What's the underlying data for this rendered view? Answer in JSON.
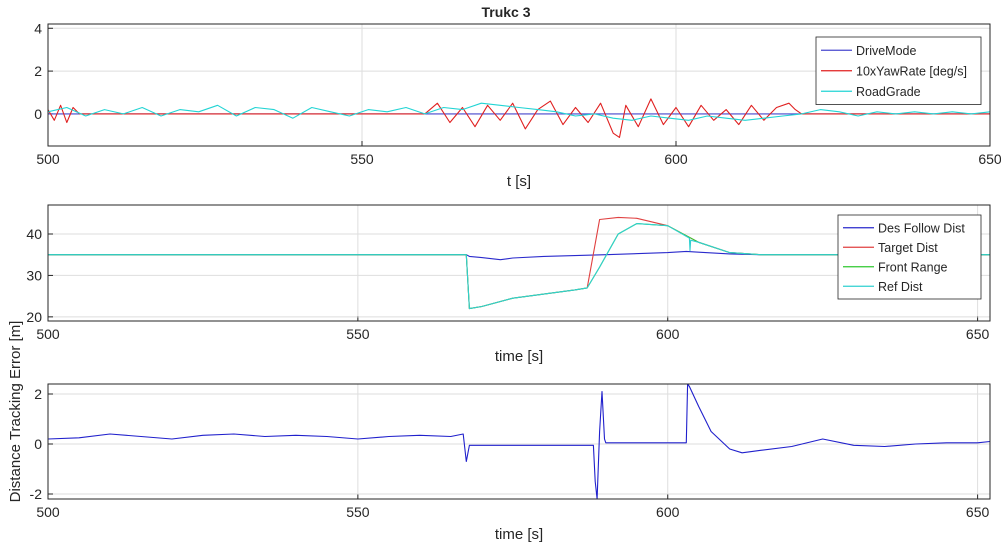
{
  "figure": {
    "title": "Trukc 3"
  },
  "chart_data": [
    {
      "type": "line",
      "title": "Trukc 3",
      "xlabel": "t [s]",
      "ylabel": "",
      "xlim": [
        500,
        650
      ],
      "ylim": [
        -1.5,
        4.2
      ],
      "xticks": [
        500,
        550,
        600,
        650
      ],
      "yticks": [
        0,
        2,
        4
      ],
      "grid": true,
      "legend_position": "top-right",
      "series": [
        {
          "name": "DriveMode",
          "color": "#4a4acf",
          "x": [
            500,
            650
          ],
          "y": [
            0,
            0
          ]
        },
        {
          "name": "10xYawRate [deg/s]",
          "color": "#e02020",
          "x": [
            500,
            501,
            502,
            503,
            504,
            505,
            510,
            520,
            530,
            540,
            550,
            560,
            562,
            564,
            566,
            568,
            570,
            572,
            574,
            576,
            578,
            580,
            582,
            584,
            586,
            588,
            590,
            591,
            592,
            594,
            596,
            598,
            600,
            602,
            604,
            606,
            608,
            610,
            612,
            614,
            616,
            618,
            619,
            620,
            630,
            640,
            650
          ],
          "y": [
            0.2,
            -0.3,
            0.4,
            -0.4,
            0.3,
            0,
            0,
            0,
            0,
            0,
            0,
            0,
            0.5,
            -0.4,
            0.3,
            -0.6,
            0.4,
            -0.3,
            0.5,
            -0.7,
            0.2,
            0.6,
            -0.5,
            0.3,
            -0.4,
            0.5,
            -0.9,
            -1.1,
            0.4,
            -0.6,
            0.7,
            -0.5,
            0.3,
            -0.6,
            0.4,
            -0.3,
            0.2,
            -0.5,
            0.4,
            -0.3,
            0.3,
            0.5,
            0.2,
            0,
            0,
            0,
            0
          ]
        },
        {
          "name": "RoadGrade",
          "color": "#22d4d4",
          "x": [
            500,
            503,
            506,
            509,
            512,
            515,
            518,
            521,
            524,
            527,
            530,
            533,
            536,
            539,
            542,
            545,
            548,
            551,
            554,
            557,
            560,
            563,
            566,
            569,
            572,
            575,
            578,
            581,
            584,
            587,
            590,
            593,
            596,
            599,
            602,
            605,
            608,
            611,
            614,
            617,
            620,
            623,
            626,
            629,
            632,
            635,
            638,
            641,
            644,
            647,
            650
          ],
          "y": [
            0.1,
            0.3,
            -0.1,
            0.2,
            0.0,
            0.3,
            -0.1,
            0.2,
            0.1,
            0.4,
            -0.1,
            0.3,
            0.2,
            -0.2,
            0.3,
            0.1,
            -0.1,
            0.2,
            0.1,
            0.3,
            0.0,
            0.3,
            0.2,
            0.5,
            0.4,
            0.3,
            0.2,
            0.1,
            -0.1,
            0.0,
            -0.2,
            -0.3,
            -0.1,
            -0.2,
            -0.3,
            -0.1,
            -0.2,
            -0.3,
            -0.2,
            -0.1,
            0.0,
            0.2,
            0.1,
            -0.1,
            0.1,
            0.0,
            0.1,
            0.0,
            0.1,
            0.0,
            0.1
          ]
        }
      ]
    },
    {
      "type": "line",
      "xlabel": "time [s]",
      "ylabel": "",
      "xlim": [
        500,
        652
      ],
      "ylim": [
        19,
        47
      ],
      "xticks": [
        500,
        550,
        600,
        650
      ],
      "yticks": [
        20,
        30,
        40
      ],
      "grid": true,
      "legend_position": "top-right",
      "series": [
        {
          "name": "Des Follow Dist",
          "color": "#2a2acc",
          "x": [
            500,
            550,
            567.5,
            568,
            570,
            573,
            575,
            580,
            590,
            600,
            603,
            605,
            610,
            615,
            620,
            652
          ],
          "y": [
            35,
            35,
            35,
            34.6,
            34.3,
            33.8,
            34.2,
            34.6,
            35,
            35.5,
            35.8,
            35.6,
            35.2,
            35.0,
            35.0,
            35.0
          ]
        },
        {
          "name": "Target Dist",
          "color": "#e04040",
          "x": [
            500,
            550,
            567.5,
            568,
            570,
            575,
            580,
            585,
            587,
            589,
            592,
            595,
            600,
            605,
            610,
            615,
            620,
            652
          ],
          "y": [
            35,
            35,
            35,
            22,
            22.5,
            24.5,
            25.5,
            26.5,
            27,
            43.5,
            44,
            43.8,
            42,
            38,
            35.5,
            35,
            35,
            35
          ]
        },
        {
          "name": "Front Range",
          "color": "#30c830",
          "x": [
            500,
            550,
            567.5,
            568,
            570,
            575,
            580,
            585,
            587,
            589,
            592,
            595,
            600,
            605,
            610,
            615,
            620,
            652
          ],
          "y": [
            35,
            35,
            35,
            22,
            22.5,
            24.5,
            25.5,
            26.5,
            27,
            32,
            40,
            42.5,
            42,
            38,
            35.5,
            35,
            35,
            35
          ]
        },
        {
          "name": "Ref Dist",
          "color": "#30d0d0",
          "x": [
            500,
            550,
            567.5,
            568,
            570,
            575,
            580,
            585,
            587,
            589,
            592,
            595,
            600,
            603.5,
            603.6,
            603.7,
            605,
            610,
            615,
            620,
            652
          ],
          "y": [
            35,
            35,
            35,
            22,
            22.5,
            24.5,
            25.5,
            26.5,
            27,
            32,
            40,
            42.5,
            42,
            39,
            36,
            38.5,
            38,
            35.5,
            35,
            35,
            35
          ]
        }
      ]
    },
    {
      "type": "line",
      "xlabel": "time [s]",
      "ylabel": "Distance Tracking Error [m]",
      "xlim": [
        500,
        652
      ],
      "ylim": [
        -2.2,
        2.4
      ],
      "xticks": [
        500,
        550,
        600,
        650
      ],
      "yticks": [
        -2,
        0,
        2
      ],
      "grid": true,
      "legend_position": "none",
      "series": [
        {
          "name": "",
          "color": "#2020cc",
          "x": [
            500,
            505,
            510,
            515,
            520,
            525,
            530,
            535,
            540,
            545,
            550,
            555,
            560,
            565,
            567,
            567.5,
            568,
            570,
            580,
            588,
            588.3,
            588.6,
            589,
            589.4,
            589.8,
            590,
            600,
            603,
            603.2,
            603.5,
            605,
            607,
            610,
            612,
            615,
            620,
            625,
            630,
            635,
            640,
            645,
            650,
            652
          ],
          "y": [
            0.2,
            0.25,
            0.4,
            0.3,
            0.2,
            0.35,
            0.4,
            0.3,
            0.35,
            0.3,
            0.2,
            0.3,
            0.35,
            0.3,
            0.4,
            -0.7,
            -0.05,
            -0.05,
            -0.05,
            -0.05,
            -1.5,
            -2.2,
            0.5,
            2.1,
            0.2,
            0.05,
            0.05,
            0.05,
            2.4,
            2.3,
            1.5,
            0.5,
            -0.2,
            -0.35,
            -0.25,
            -0.1,
            0.2,
            -0.05,
            -0.1,
            0.0,
            0.05,
            0.05,
            0.1
          ]
        }
      ]
    }
  ]
}
